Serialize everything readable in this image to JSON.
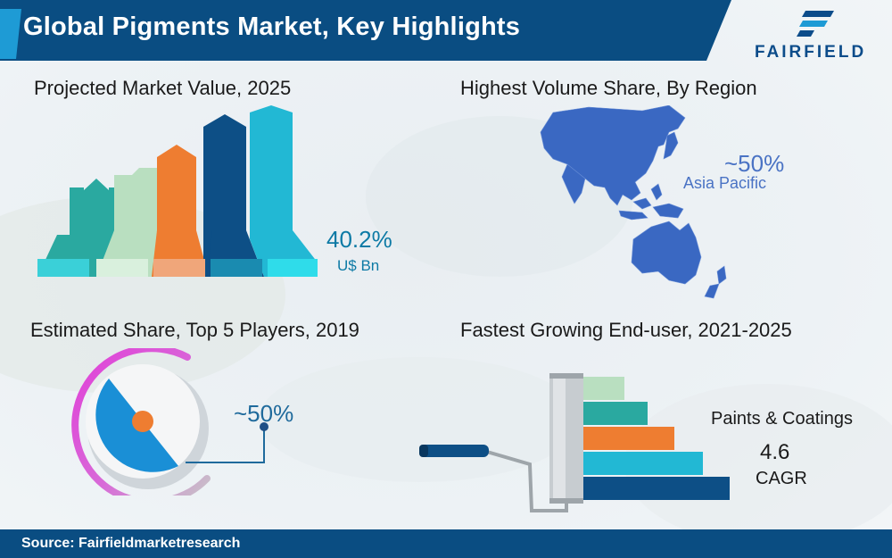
{
  "header": {
    "title": "Global Pigments Market, Key Highlights",
    "logo_text": "FAIRFIELD"
  },
  "sections": {
    "market_value": {
      "title": "Projected Market Value, 2025",
      "value": "40.2%",
      "unit": "U$ Bn"
    },
    "volume_share": {
      "title": "Highest Volume Share, By Region",
      "value": "~50%",
      "region": "Asia Pacific"
    },
    "players_share": {
      "title": "Estimated Share, Top 5 Players, 2019",
      "value": "~50%"
    },
    "end_user": {
      "title": "Fastest Growing End-user, 2021-2025",
      "segment": "Paints & Coatings",
      "value": "4.6",
      "metric": "CAGR"
    }
  },
  "footer": {
    "source": "Source: Fairfieldmarketresearch"
  },
  "colors": {
    "navy": "#0a4d82",
    "teal": "#2aa9a0",
    "mint": "#b9dfc0",
    "orange": "#ee7d31",
    "dark_blue": "#0d4f86",
    "cyan": "#22b8d4",
    "map_blue": "#3a68c2",
    "pink": "#e040d8",
    "pie_blue": "#1a8fd6"
  },
  "icons": [
    "bar-arrows-icon",
    "world-map-icon",
    "pie-ring-icon",
    "paint-roller-icon",
    "fairfield-logo-icon"
  ]
}
